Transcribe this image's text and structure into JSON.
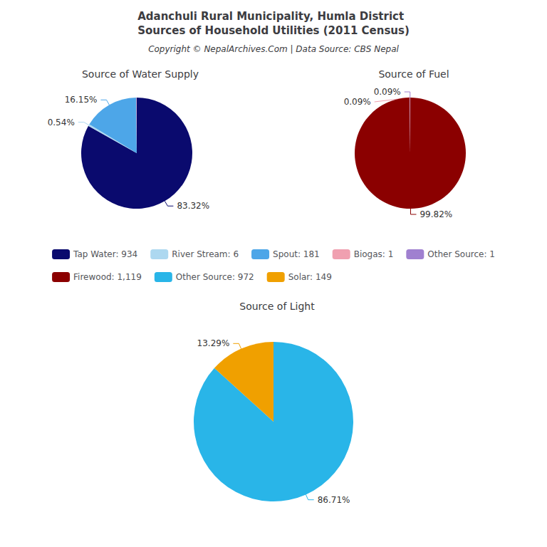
{
  "title": "Adanchuli Rural Municipality, Humla District\nSources of Household Utilities (2011 Census)",
  "subtitle": "Copyright © NepalArchives.Com | Data Source: CBS Nepal",
  "legend": "center",
  "chart_data": [
    {
      "type": "pie",
      "title": "Source of Water Supply",
      "categories": [
        "Tap Water: 934",
        "River Stream: 6",
        "Spout: 181",
        "Biogas: 1",
        "Other Source: 1"
      ],
      "values": [
        83.32,
        0.54,
        16.15,
        0.09,
        0.09
      ],
      "value_labels": [
        "83.32%",
        "0.54%",
        "16.15%",
        null,
        null
      ],
      "colors": [
        "#0a0a6e",
        "#add8f0",
        "#4da6e8",
        "#f0a0b0",
        "#a080d0"
      ],
      "data_labels": true
    },
    {
      "type": "pie",
      "title": "Source of Fuel",
      "categories": [
        "Firewood: 1,119",
        "Biogas: 1",
        "Other Source: 1"
      ],
      "values": [
        99.82,
        0.09,
        0.09
      ],
      "value_labels": [
        "99.82%",
        "0.09%",
        "0.09%"
      ],
      "colors": [
        "#8b0000",
        "#f0a0b0",
        "#a080d0"
      ],
      "data_labels": true
    },
    {
      "type": "pie",
      "title": "Source of Light",
      "categories": [
        "Other Source: 972",
        "Solar: 149"
      ],
      "values": [
        86.71,
        13.29
      ],
      "value_labels": [
        "86.71%",
        "13.29%"
      ],
      "colors": [
        "#29b5e8",
        "#f0a000"
      ],
      "data_labels": true
    }
  ]
}
